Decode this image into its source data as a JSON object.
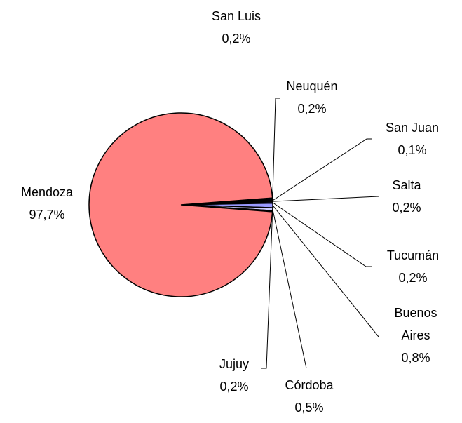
{
  "chart_data": {
    "type": "pie",
    "categories": [
      "San Luis",
      "Neuquén",
      "San Juan",
      "Salta",
      "Tucumán",
      "Buenos Aires",
      "Córdoba",
      "Jujuy",
      "Mendoza"
    ],
    "values": [
      0.2,
      0.2,
      0.1,
      0.2,
      0.2,
      0.8,
      0.5,
      0.2,
      97.7
    ],
    "value_labels": [
      "0,2%",
      "0,2%",
      "0,1%",
      "0,2%",
      "0,2%",
      "0,8%",
      "0,5%",
      "0,2%",
      "97,7%"
    ],
    "colors": [
      "#000000",
      "#000080",
      "#660066",
      "#993366",
      "#333399",
      "#9999ff",
      "#ccccff",
      "#000000",
      "#ff8080"
    ]
  }
}
